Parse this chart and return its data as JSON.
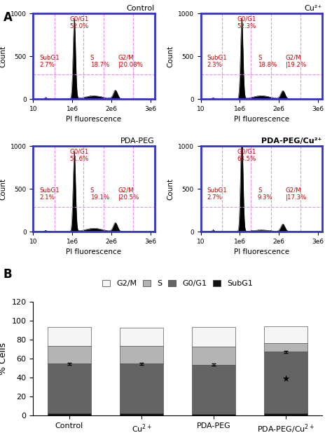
{
  "panel_A_label": "A",
  "panel_B_label": "B",
  "flow_panels": [
    {
      "title": "Control",
      "title_bold": false,
      "G0G1": 52.0,
      "SubG1": 2.7,
      "S": 18.7,
      "G2M": 20.08
    },
    {
      "title": "Cu²⁺",
      "title_bold": false,
      "G0G1": 52.3,
      "SubG1": 2.3,
      "S": 18.8,
      "G2M": 19.2
    },
    {
      "title": "PDA-PEG",
      "title_bold": false,
      "G0G1": 51.6,
      "SubG1": 2.1,
      "S": 19.1,
      "G2M": 20.5
    },
    {
      "title": "PDA-PEG/Cu²⁺",
      "title_bold": true,
      "G0G1": 64.5,
      "SubG1": 2.7,
      "S": 9.3,
      "G2M": 17.3
    }
  ],
  "bar_categories": [
    "Control",
    "Cu$^{2+}$",
    "PDA-PEG",
    "PDA-PEG/Cu$^{2+}$"
  ],
  "bar_data": {
    "SubG1": [
      2.7,
      2.3,
      2.1,
      2.7
    ],
    "G0G1": [
      52.0,
      52.3,
      51.6,
      64.5
    ],
    "S": [
      18.7,
      18.8,
      19.1,
      9.3
    ],
    "G2M": [
      20.08,
      19.2,
      20.5,
      17.3
    ]
  },
  "bar_colors": {
    "SubG1": "#111111",
    "G0G1": "#646464",
    "S": "#b4b4b4",
    "G2M": "#f5f5f5"
  },
  "bar_ylabel": "% Cells",
  "bar_ylim": [
    0,
    120
  ],
  "bar_yticks": [
    0,
    20,
    40,
    60,
    80,
    100,
    120
  ],
  "flow_border_color": "#3333cc",
  "flow_label_color": "#cc0000",
  "dashed_line_color": "#ee82ee",
  "xlabel": "PI fluorescence",
  "ylabel_flow": "Count"
}
